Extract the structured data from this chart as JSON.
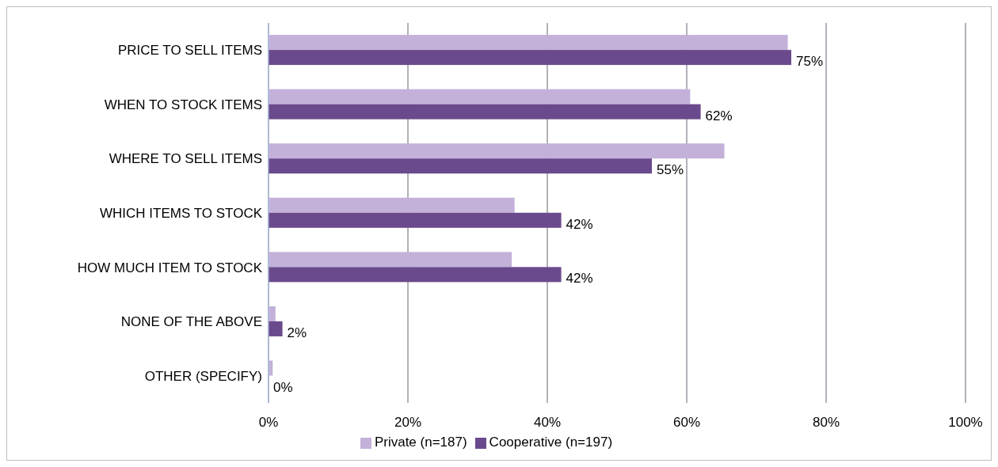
{
  "chart_data": {
    "type": "bar",
    "orientation": "horizontal",
    "categories": [
      "PRICE TO SELL ITEMS",
      "WHEN TO STOCK ITEMS",
      "WHERE TO SELL ITEMS",
      "WHICH ITEMS TO STOCK",
      "HOW MUCH ITEM TO STOCK",
      "NONE OF THE ABOVE",
      "OTHER (SPECIFY)"
    ],
    "series": [
      {
        "name": "Private (n=187)",
        "color": "#c3b1d9",
        "values": [
          74.5,
          60.5,
          65.4,
          35.3,
          34.9,
          1.0,
          0.6
        ]
      },
      {
        "name": "Cooperative (n=197)",
        "color": "#6a4a8c",
        "values": [
          75,
          62,
          55,
          42,
          42,
          2,
          0
        ],
        "value_labels": [
          "75%",
          "62%",
          "55%",
          "42%",
          "42%",
          "2%",
          "0%"
        ]
      }
    ],
    "xlim": [
      0,
      100
    ],
    "xticks": [
      {
        "value": 0,
        "label": "0%"
      },
      {
        "value": 20,
        "label": "20%"
      },
      {
        "value": 40,
        "label": "40%"
      },
      {
        "value": 60,
        "label": "60%"
      },
      {
        "value": 80,
        "label": "80%"
      },
      {
        "value": 100,
        "label": "100%"
      }
    ],
    "grid": "x",
    "legend": "bottom"
  }
}
